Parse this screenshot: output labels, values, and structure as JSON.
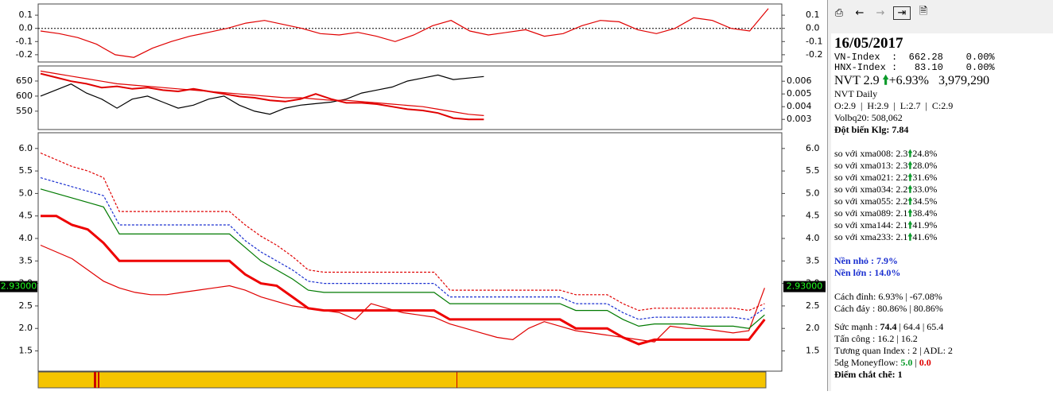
{
  "chart_data": [
    {
      "type": "line",
      "ylim": [
        -0.255,
        0.185
      ],
      "yticks": [
        0.1,
        {
          "value": 0,
          "label": "0.0"
        },
        -0.1,
        -0.2
      ],
      "zero_line": true,
      "series": [
        {
          "color": "#e00000",
          "values": [
            -0.02,
            -0.04,
            -0.07,
            -0.12,
            -0.2,
            -0.22,
            -0.15,
            -0.1,
            -0.06,
            -0.03,
            0.0,
            0.04,
            0.06,
            0.03,
            0.0,
            -0.04,
            -0.05,
            -0.03,
            -0.06,
            -0.1,
            -0.05,
            0.02,
            0.06,
            -0.02,
            -0.05,
            -0.03,
            -0.01,
            -0.06,
            -0.04,
            0.02,
            0.06,
            0.05,
            -0.01,
            -0.04,
            0.0,
            0.08,
            0.06,
            0.0,
            -0.02,
            0.15
          ]
        }
      ]
    },
    {
      "type": "line",
      "ylim": [
        489,
        700
      ],
      "yticks": [
        550,
        600,
        650
      ],
      "y2lim": [
        0.0022,
        0.0072
      ],
      "y2ticks": [
        0.003,
        0.004,
        0.005,
        0.006
      ],
      "series": [
        {
          "color": "#000000",
          "values": [
            600,
            620,
            640,
            610,
            590,
            560,
            590,
            600,
            580,
            560,
            570,
            590,
            600,
            570,
            550,
            540,
            560,
            570,
            575,
            580,
            590,
            610,
            620,
            630,
            650,
            660,
            670,
            655,
            660,
            665
          ]
        },
        {
          "color": "#e00000",
          "axis": "y2",
          "values": [
            0.0066,
            0.0063,
            0.006,
            0.0058,
            0.0055,
            0.0056,
            0.0054,
            0.0055,
            0.0053,
            0.0052,
            0.0054,
            0.0052,
            0.005,
            0.0048,
            0.0047,
            0.0045,
            0.0044,
            0.0046,
            0.005,
            0.0046,
            0.0043,
            0.0043,
            0.0042,
            0.004,
            0.0038,
            0.0037,
            0.0035,
            0.0031,
            0.003,
            0.003
          ]
        },
        {
          "color": "#e00000",
          "axis": "y2",
          "values": [
            0.0068,
            0.0066,
            0.0064,
            0.0062,
            0.006,
            0.0058,
            0.0057,
            0.0056,
            0.0055,
            0.0054,
            0.0053,
            0.0052,
            0.0051,
            0.005,
            0.0049,
            0.0048,
            0.0047,
            0.0047,
            0.0046,
            0.0045,
            0.0045,
            0.0044,
            0.0043,
            0.0042,
            0.0041,
            0.004,
            0.0038,
            0.0036,
            0.0034,
            0.0033
          ]
        }
      ]
    },
    {
      "type": "line",
      "ylim": [
        1.05,
        6.35
      ],
      "yticks": [
        {
          "value": 6,
          "label": "6.0"
        },
        5.5,
        {
          "value": 5,
          "label": "5.0"
        },
        4.5,
        {
          "value": 4,
          "label": "4.0"
        },
        3.5,
        {
          "value": 3,
          "label": "3.0"
        },
        2.5,
        {
          "value": 2,
          "label": "2.0"
        },
        1.5
      ],
      "last_price": {
        "value": 2.93,
        "label": "2.93000"
      },
      "series": [
        {
          "color": "#e00000",
          "values": [
            3.85,
            3.7,
            3.55,
            3.3,
            3.05,
            2.9,
            2.8,
            2.75,
            2.75,
            2.8,
            2.85,
            2.9,
            2.95,
            2.85,
            2.7,
            2.6,
            2.5,
            2.45,
            2.4,
            2.35,
            2.2,
            2.55,
            2.45,
            2.35,
            2.3,
            2.25,
            2.1,
            2.0,
            1.9,
            1.8,
            1.75,
            2.0,
            2.15,
            2.05,
            1.95,
            1.9,
            1.85,
            1.8,
            1.75,
            1.7,
            2.05,
            2.0,
            2.0,
            1.95,
            1.9,
            1.95,
            2.9
          ]
        },
        {
          "color": "#ee0000",
          "values": [
            4.5,
            4.5,
            4.3,
            4.2,
            3.9,
            3.5,
            3.5,
            3.5,
            3.5,
            3.5,
            3.5,
            3.5,
            3.5,
            3.2,
            3.0,
            2.95,
            2.7,
            2.45,
            2.4,
            2.4,
            2.4,
            2.4,
            2.4,
            2.4,
            2.4,
            2.4,
            2.2,
            2.2,
            2.2,
            2.2,
            2.2,
            2.2,
            2.2,
            2.2,
            2.0,
            2.0,
            2.0,
            1.8,
            1.65,
            1.75,
            1.75,
            1.75,
            1.75,
            1.75,
            1.75,
            1.75,
            2.2
          ]
        },
        {
          "color": "#007a00",
          "values": [
            5.1,
            5.0,
            4.9,
            4.8,
            4.7,
            4.1,
            4.1,
            4.1,
            4.1,
            4.1,
            4.1,
            4.1,
            4.1,
            3.8,
            3.5,
            3.3,
            3.1,
            2.85,
            2.8,
            2.8,
            2.8,
            2.8,
            2.8,
            2.8,
            2.8,
            2.8,
            2.55,
            2.55,
            2.55,
            2.55,
            2.55,
            2.55,
            2.55,
            2.55,
            2.4,
            2.4,
            2.4,
            2.2,
            2.05,
            2.1,
            2.1,
            2.1,
            2.05,
            2.05,
            2.05,
            2.0,
            2.3
          ]
        },
        {
          "color": "#1a2fd0",
          "dashed": true,
          "values": [
            5.35,
            5.25,
            5.15,
            5.05,
            4.95,
            4.3,
            4.3,
            4.3,
            4.3,
            4.3,
            4.3,
            4.3,
            4.3,
            3.95,
            3.7,
            3.5,
            3.3,
            3.05,
            3.0,
            3.0,
            3.0,
            3.0,
            3.0,
            3.0,
            3.0,
            3.0,
            2.7,
            2.7,
            2.7,
            2.7,
            2.7,
            2.7,
            2.7,
            2.7,
            2.55,
            2.55,
            2.55,
            2.35,
            2.2,
            2.25,
            2.25,
            2.25,
            2.25,
            2.25,
            2.25,
            2.2,
            2.45
          ]
        },
        {
          "color": "#e00000",
          "dashed": true,
          "values": [
            5.9,
            5.75,
            5.6,
            5.5,
            5.35,
            4.6,
            4.6,
            4.6,
            4.6,
            4.6,
            4.6,
            4.6,
            4.6,
            4.3,
            4.05,
            3.85,
            3.6,
            3.3,
            3.25,
            3.25,
            3.25,
            3.25,
            3.25,
            3.25,
            3.25,
            3.25,
            2.85,
            2.85,
            2.85,
            2.85,
            2.85,
            2.85,
            2.85,
            2.85,
            2.75,
            2.75,
            2.75,
            2.55,
            2.4,
            2.45,
            2.45,
            2.45,
            2.45,
            2.45,
            2.45,
            2.4,
            2.55
          ]
        }
      ]
    }
  ],
  "info": {
    "date": "16/05/2017",
    "vn_index": "VN-Index  :  662.28    0.00%",
    "hnx_index": "HNX-Index :   83.10    0.00%",
    "ticker": "NVT 2.9",
    "change": "+6.93%",
    "volume": "3,979,290",
    "chart_name": "NVT Daily",
    "ohlc": "O:2.9  |  H:2.9  |  L:2.7  |  C:2.9",
    "volbq": "Volbq20: 508,062",
    "dot_bien": "Đột biến Klg: 7.84",
    "xma": [
      {
        "label": "so với xma008:",
        "value": "2.3",
        "pct": "24.8%"
      },
      {
        "label": "so với xma013:",
        "value": "2.3",
        "pct": "28.0%"
      },
      {
        "label": "so với xma021:",
        "value": "2.2",
        "pct": "31.6%"
      },
      {
        "label": "so với xma034:",
        "value": "2.2",
        "pct": "33.0%"
      },
      {
        "label": "so với xma055:",
        "value": "2.2",
        "pct": "34.5%"
      },
      {
        "label": "so với xma089:",
        "value": "2.1",
        "pct": "38.4%"
      },
      {
        "label": "so với xma144:",
        "value": "2.1",
        "pct": "41.9%"
      },
      {
        "label": "so với xma233:",
        "value": "2.1",
        "pct": "41.6%"
      }
    ],
    "nen_nho": "Nền nhỏ : 7.9%",
    "nen_lon": "Nền lớn : 14.0%",
    "cach_dinh": "Cách đỉnh: 6.93% | -67.08%",
    "cach_day": "Cách đáy : 80.86% | 80.86%",
    "suc_manh_label": "Sức mạnh : ",
    "suc_manh_main": "74.4",
    "suc_manh_rest": " | 64.4 | 65.4",
    "tan_cong": "Tấn công : 16.2 | 16.2",
    "tuong_quan": "Tương quan Index : 2 | ADL: 2",
    "moneyflow_label": "5dg Moneyflow: ",
    "moneyflow_1": "5.0",
    "moneyflow_2": "0.0",
    "diem": "Điểm chắt chẽ: 1"
  }
}
